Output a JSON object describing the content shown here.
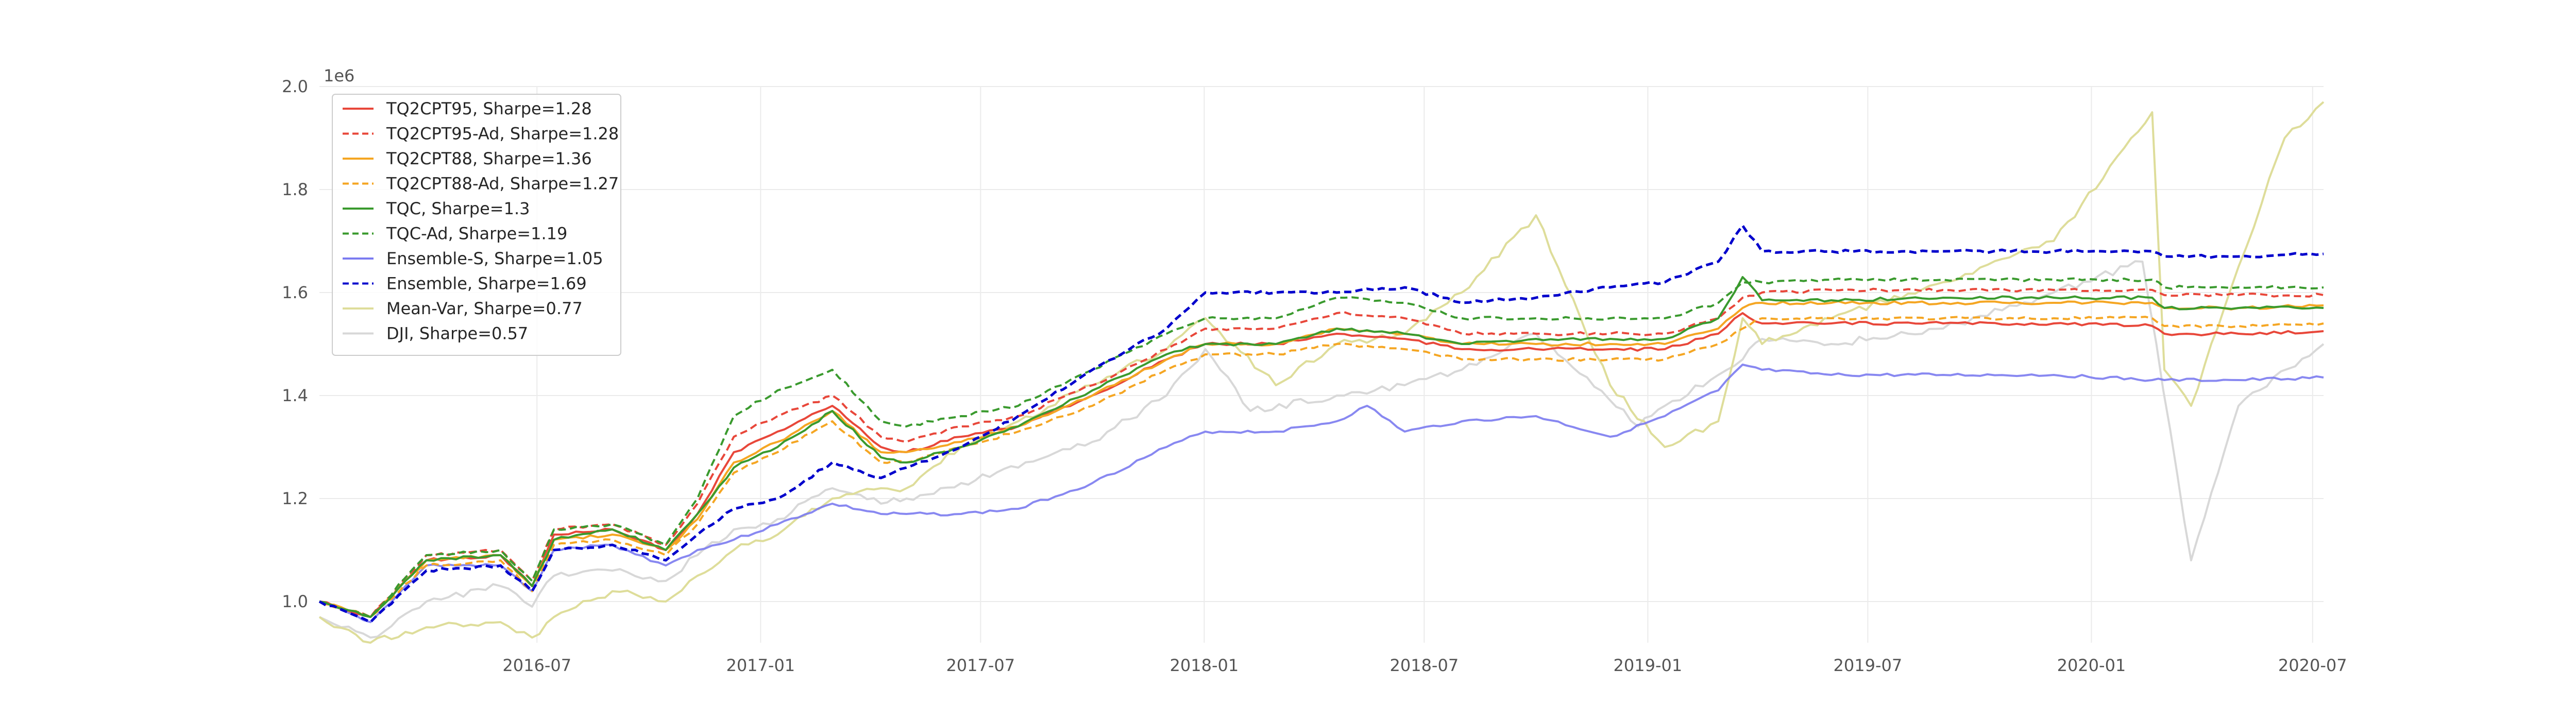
{
  "chart_data": {
    "type": "line",
    "title": "",
    "xlabel": "",
    "ylabel": "",
    "y_exponent_label": "1e6",
    "ylim": [
      0.92,
      2.0
    ],
    "xlim": [
      "2016-01-04",
      "2020-07-10"
    ],
    "x_ticks": [
      {
        "date": "2016-07-01",
        "label": "2016-07"
      },
      {
        "date": "2017-01-01",
        "label": "2017-01"
      },
      {
        "date": "2017-07-01",
        "label": "2017-07"
      },
      {
        "date": "2018-01-01",
        "label": "2018-01"
      },
      {
        "date": "2018-07-01",
        "label": "2018-07"
      },
      {
        "date": "2019-01-01",
        "label": "2019-01"
      },
      {
        "date": "2019-07-01",
        "label": "2019-07"
      },
      {
        "date": "2020-01-01",
        "label": "2020-01"
      },
      {
        "date": "2020-07-01",
        "label": "2020-07"
      }
    ],
    "y_ticks": [
      {
        "value": 1.0,
        "label": "1.0"
      },
      {
        "value": 1.2,
        "label": "1.2"
      },
      {
        "value": 1.4,
        "label": "1.4"
      },
      {
        "value": 1.6,
        "label": "1.6"
      },
      {
        "value": 1.8,
        "label": "1.8"
      },
      {
        "value": 2.0,
        "label": "2.0"
      }
    ],
    "grid": true,
    "legend_position": "top-left",
    "series": [
      {
        "name": "TQ2CPT95, Sharpe=1.28",
        "color": "#e8473a",
        "dash": "solid",
        "width": 4,
        "x": [
          "2016-01-04",
          "2016-02-15",
          "2016-04-01",
          "2016-06-01",
          "2016-06-27",
          "2016-07-15",
          "2016-09-01",
          "2016-10-15",
          "2016-11-10",
          "2016-12-10",
          "2017-01-15",
          "2017-03-01",
          "2017-04-10",
          "2017-05-01",
          "2017-06-15",
          "2017-08-01",
          "2017-10-01",
          "2017-12-01",
          "2018-01-02",
          "2018-03-01",
          "2018-04-20",
          "2018-06-15",
          "2018-08-01",
          "2018-10-01",
          "2018-12-01",
          "2019-01-15",
          "2019-02-28",
          "2019-03-20",
          "2019-04-05",
          "2019-06-01",
          "2019-09-01",
          "2019-12-01",
          "2020-02-20",
          "2020-03-01",
          "2020-05-01",
          "2020-07-10"
        ],
        "y": [
          1.0,
          0.97,
          1.08,
          1.09,
          1.03,
          1.13,
          1.14,
          1.1,
          1.17,
          1.29,
          1.33,
          1.38,
          1.3,
          1.29,
          1.32,
          1.34,
          1.4,
          1.47,
          1.5,
          1.5,
          1.52,
          1.51,
          1.49,
          1.49,
          1.49,
          1.49,
          1.52,
          1.56,
          1.54,
          1.54,
          1.54,
          1.54,
          1.535,
          1.52,
          1.52,
          1.525
        ]
      },
      {
        "name": "TQ2CPT95-Ad, Sharpe=1.28",
        "color": "#e8473a",
        "dash": "dashed",
        "width": 4,
        "x": [
          "2016-01-04",
          "2016-02-15",
          "2016-04-01",
          "2016-06-01",
          "2016-06-27",
          "2016-07-15",
          "2016-09-01",
          "2016-10-15",
          "2016-11-10",
          "2016-12-10",
          "2017-01-15",
          "2017-03-01",
          "2017-04-10",
          "2017-05-01",
          "2017-06-15",
          "2017-08-01",
          "2017-10-01",
          "2017-12-01",
          "2018-01-02",
          "2018-03-01",
          "2018-04-20",
          "2018-06-15",
          "2018-08-01",
          "2018-10-01",
          "2018-12-01",
          "2019-01-15",
          "2019-02-28",
          "2019-03-20",
          "2019-04-05",
          "2019-06-01",
          "2019-09-01",
          "2019-12-01",
          "2020-02-20",
          "2020-03-01",
          "2020-05-01",
          "2020-07-10"
        ],
        "y": [
          1.0,
          0.97,
          1.09,
          1.1,
          1.04,
          1.14,
          1.15,
          1.11,
          1.19,
          1.32,
          1.36,
          1.4,
          1.32,
          1.31,
          1.34,
          1.36,
          1.42,
          1.49,
          1.53,
          1.53,
          1.56,
          1.55,
          1.52,
          1.52,
          1.52,
          1.52,
          1.55,
          1.59,
          1.6,
          1.605,
          1.605,
          1.605,
          1.605,
          1.595,
          1.595,
          1.595
        ]
      },
      {
        "name": "TQ2CPT88, Sharpe=1.36",
        "color": "#f5a623",
        "dash": "solid",
        "width": 4,
        "x": [
          "2016-01-04",
          "2016-02-15",
          "2016-04-01",
          "2016-06-01",
          "2016-06-27",
          "2016-07-15",
          "2016-09-01",
          "2016-10-15",
          "2016-11-10",
          "2016-12-10",
          "2017-01-15",
          "2017-03-01",
          "2017-04-10",
          "2017-05-01",
          "2017-06-15",
          "2017-08-01",
          "2017-10-01",
          "2017-12-01",
          "2018-01-02",
          "2018-03-01",
          "2018-04-20",
          "2018-06-15",
          "2018-08-01",
          "2018-10-01",
          "2018-12-01",
          "2019-01-15",
          "2019-02-28",
          "2019-03-20",
          "2019-04-05",
          "2019-06-01",
          "2019-09-01",
          "2019-12-01",
          "2020-02-20",
          "2020-03-01",
          "2020-05-01",
          "2020-07-10"
        ],
        "y": [
          1.0,
          0.97,
          1.08,
          1.09,
          1.03,
          1.12,
          1.13,
          1.1,
          1.16,
          1.27,
          1.31,
          1.37,
          1.29,
          1.29,
          1.31,
          1.34,
          1.4,
          1.47,
          1.5,
          1.5,
          1.53,
          1.52,
          1.5,
          1.5,
          1.5,
          1.5,
          1.53,
          1.57,
          1.58,
          1.58,
          1.58,
          1.58,
          1.58,
          1.57,
          1.57,
          1.575
        ]
      },
      {
        "name": "TQ2CPT88-Ad, Sharpe=1.27",
        "color": "#f5a623",
        "dash": "dashed",
        "width": 4,
        "x": [
          "2016-01-04",
          "2016-02-15",
          "2016-04-01",
          "2016-06-01",
          "2016-06-27",
          "2016-07-15",
          "2016-09-01",
          "2016-10-15",
          "2016-11-10",
          "2016-12-10",
          "2017-01-15",
          "2017-03-01",
          "2017-04-10",
          "2017-05-01",
          "2017-06-15",
          "2017-08-01",
          "2017-10-01",
          "2017-12-01",
          "2018-01-02",
          "2018-03-01",
          "2018-04-20",
          "2018-06-15",
          "2018-08-01",
          "2018-10-01",
          "2018-12-01",
          "2019-01-15",
          "2019-02-28",
          "2019-03-20",
          "2019-04-05",
          "2019-06-01",
          "2019-09-01",
          "2019-12-01",
          "2020-02-20",
          "2020-03-01",
          "2020-05-01",
          "2020-07-10"
        ],
        "y": [
          1.0,
          0.97,
          1.07,
          1.08,
          1.02,
          1.11,
          1.12,
          1.09,
          1.15,
          1.25,
          1.29,
          1.35,
          1.27,
          1.27,
          1.3,
          1.33,
          1.38,
          1.45,
          1.48,
          1.48,
          1.5,
          1.49,
          1.47,
          1.47,
          1.47,
          1.47,
          1.5,
          1.53,
          1.55,
          1.55,
          1.55,
          1.55,
          1.55,
          1.535,
          1.535,
          1.54
        ]
      },
      {
        "name": "TQC, Sharpe=1.3",
        "color": "#3a9a2e",
        "dash": "solid",
        "width": 4,
        "x": [
          "2016-01-04",
          "2016-02-15",
          "2016-04-01",
          "2016-06-01",
          "2016-06-27",
          "2016-07-15",
          "2016-09-01",
          "2016-10-15",
          "2016-11-10",
          "2016-12-10",
          "2017-01-15",
          "2017-03-01",
          "2017-04-10",
          "2017-05-01",
          "2017-06-15",
          "2017-08-01",
          "2017-10-01",
          "2017-12-01",
          "2018-01-02",
          "2018-03-01",
          "2018-04-20",
          "2018-06-15",
          "2018-08-01",
          "2018-10-01",
          "2018-12-01",
          "2019-01-15",
          "2019-02-28",
          "2019-03-20",
          "2019-04-05",
          "2019-06-01",
          "2019-09-01",
          "2019-12-01",
          "2020-02-20",
          "2020-03-01",
          "2020-05-01",
          "2020-07-10"
        ],
        "y": [
          1.0,
          0.97,
          1.08,
          1.09,
          1.03,
          1.12,
          1.14,
          1.1,
          1.17,
          1.26,
          1.3,
          1.37,
          1.28,
          1.27,
          1.3,
          1.34,
          1.41,
          1.48,
          1.5,
          1.5,
          1.53,
          1.52,
          1.5,
          1.51,
          1.51,
          1.51,
          1.55,
          1.63,
          1.585,
          1.585,
          1.59,
          1.59,
          1.59,
          1.57,
          1.57,
          1.57
        ]
      },
      {
        "name": "TQC-Ad, Sharpe=1.19",
        "color": "#3a9a2e",
        "dash": "dashed",
        "width": 4,
        "x": [
          "2016-01-04",
          "2016-02-15",
          "2016-04-01",
          "2016-06-01",
          "2016-06-27",
          "2016-07-15",
          "2016-09-01",
          "2016-10-15",
          "2016-11-10",
          "2016-12-10",
          "2017-01-15",
          "2017-03-01",
          "2017-04-10",
          "2017-05-01",
          "2017-06-15",
          "2017-08-01",
          "2017-10-01",
          "2017-12-01",
          "2018-01-02",
          "2018-03-01",
          "2018-04-20",
          "2018-06-15",
          "2018-08-01",
          "2018-10-01",
          "2018-12-01",
          "2019-01-15",
          "2019-02-28",
          "2019-03-20",
          "2019-04-05",
          "2019-06-01",
          "2019-09-01",
          "2019-12-01",
          "2020-02-20",
          "2020-03-01",
          "2020-05-01",
          "2020-07-10"
        ],
        "y": [
          1.0,
          0.97,
          1.09,
          1.1,
          1.04,
          1.14,
          1.15,
          1.11,
          1.2,
          1.36,
          1.41,
          1.45,
          1.35,
          1.34,
          1.36,
          1.38,
          1.45,
          1.52,
          1.55,
          1.55,
          1.59,
          1.58,
          1.55,
          1.55,
          1.55,
          1.55,
          1.58,
          1.62,
          1.62,
          1.625,
          1.625,
          1.625,
          1.625,
          1.61,
          1.61,
          1.61
        ]
      },
      {
        "name": "Ensemble-S, Sharpe=1.05",
        "color": "#7b7bf0",
        "dash": "solid",
        "width": 4,
        "x": [
          "2016-01-04",
          "2016-02-15",
          "2016-04-01",
          "2016-06-01",
          "2016-06-27",
          "2016-07-15",
          "2016-09-01",
          "2016-10-15",
          "2016-11-10",
          "2016-12-10",
          "2017-01-15",
          "2017-03-01",
          "2017-04-10",
          "2017-05-01",
          "2017-06-15",
          "2017-08-01",
          "2017-10-01",
          "2017-12-01",
          "2018-01-02",
          "2018-03-01",
          "2018-04-20",
          "2018-05-15",
          "2018-06-15",
          "2018-08-01",
          "2018-10-01",
          "2018-12-01",
          "2019-01-15",
          "2019-02-28",
          "2019-03-20",
          "2019-04-05",
          "2019-06-01",
          "2019-09-01",
          "2019-12-01",
          "2020-02-20",
          "2020-03-01",
          "2020-05-01",
          "2020-07-10"
        ],
        "y": [
          1.0,
          0.96,
          1.07,
          1.07,
          1.02,
          1.1,
          1.11,
          1.07,
          1.1,
          1.12,
          1.15,
          1.19,
          1.17,
          1.17,
          1.17,
          1.18,
          1.23,
          1.3,
          1.33,
          1.33,
          1.35,
          1.38,
          1.33,
          1.35,
          1.36,
          1.32,
          1.36,
          1.41,
          1.46,
          1.45,
          1.44,
          1.44,
          1.44,
          1.43,
          1.43,
          1.43,
          1.435
        ]
      },
      {
        "name": "Ensemble, Sharpe=1.69",
        "color": "#0000cc",
        "dash": "dashed",
        "width": 5,
        "x": [
          "2016-01-04",
          "2016-02-15",
          "2016-04-01",
          "2016-06-01",
          "2016-06-27",
          "2016-07-15",
          "2016-09-01",
          "2016-10-15",
          "2016-11-10",
          "2016-12-10",
          "2017-01-15",
          "2017-03-01",
          "2017-04-10",
          "2017-05-01",
          "2017-06-15",
          "2017-08-01",
          "2017-10-01",
          "2017-12-01",
          "2018-01-02",
          "2018-03-01",
          "2018-04-20",
          "2018-06-15",
          "2018-08-01",
          "2018-10-01",
          "2018-12-01",
          "2019-01-15",
          "2019-02-28",
          "2019-03-20",
          "2019-04-05",
          "2019-06-01",
          "2019-09-01",
          "2019-12-01",
          "2020-02-20",
          "2020-03-01",
          "2020-05-01",
          "2020-07-10"
        ],
        "y": [
          1.0,
          0.96,
          1.06,
          1.07,
          1.02,
          1.1,
          1.11,
          1.08,
          1.13,
          1.18,
          1.2,
          1.27,
          1.24,
          1.26,
          1.3,
          1.36,
          1.45,
          1.53,
          1.6,
          1.6,
          1.6,
          1.61,
          1.58,
          1.59,
          1.61,
          1.62,
          1.66,
          1.73,
          1.68,
          1.68,
          1.68,
          1.68,
          1.68,
          1.67,
          1.67,
          1.675
        ]
      },
      {
        "name": "Mean-Var, Sharpe=0.77",
        "color": "#dedd9a",
        "dash": "solid",
        "width": 4,
        "x": [
          "2016-01-04",
          "2016-02-15",
          "2016-04-01",
          "2016-06-01",
          "2016-06-27",
          "2016-07-15",
          "2016-09-01",
          "2016-10-15",
          "2016-11-10",
          "2016-12-10",
          "2017-01-15",
          "2017-03-01",
          "2017-04-10",
          "2017-05-01",
          "2017-06-15",
          "2017-08-01",
          "2017-10-01",
          "2017-12-01",
          "2018-01-02",
          "2018-03-01",
          "2018-04-20",
          "2018-06-15",
          "2018-08-01",
          "2018-10-01",
          "2018-12-01",
          "2019-01-15",
          "2019-02-28",
          "2019-03-20",
          "2019-04-05",
          "2019-06-01",
          "2019-09-01",
          "2019-12-01",
          "2020-02-20",
          "2020-03-01",
          "2020-03-23",
          "2020-05-01",
          "2020-06-08",
          "2020-07-10"
        ],
        "y": [
          0.97,
          0.92,
          0.95,
          0.96,
          0.93,
          0.97,
          1.02,
          1.0,
          1.05,
          1.1,
          1.13,
          1.2,
          1.22,
          1.22,
          1.3,
          1.35,
          1.42,
          1.49,
          1.55,
          1.42,
          1.5,
          1.52,
          1.6,
          1.75,
          1.42,
          1.3,
          1.35,
          1.55,
          1.5,
          1.55,
          1.62,
          1.7,
          1.95,
          1.45,
          1.38,
          1.65,
          1.9,
          1.97
        ]
      },
      {
        "name": "DJI, Sharpe=0.57",
        "color": "#d8d8d8",
        "dash": "solid",
        "width": 4,
        "x": [
          "2016-01-04",
          "2016-02-15",
          "2016-04-01",
          "2016-06-01",
          "2016-06-27",
          "2016-07-15",
          "2016-09-01",
          "2016-10-15",
          "2016-11-10",
          "2016-12-10",
          "2017-01-15",
          "2017-03-01",
          "2017-04-10",
          "2017-05-01",
          "2017-06-15",
          "2017-08-01",
          "2017-10-01",
          "2017-12-01",
          "2018-01-02",
          "2018-02-08",
          "2018-04-20",
          "2018-06-15",
          "2018-08-01",
          "2018-10-01",
          "2018-12-24",
          "2019-01-15",
          "2019-02-28",
          "2019-03-20",
          "2019-04-05",
          "2019-06-01",
          "2019-09-01",
          "2019-12-01",
          "2020-02-12",
          "2020-03-23",
          "2020-05-01",
          "2020-07-10"
        ],
        "y": [
          0.97,
          0.93,
          1.0,
          1.03,
          0.99,
          1.05,
          1.06,
          1.04,
          1.09,
          1.14,
          1.16,
          1.22,
          1.19,
          1.2,
          1.23,
          1.26,
          1.31,
          1.4,
          1.49,
          1.37,
          1.4,
          1.42,
          1.45,
          1.52,
          1.34,
          1.38,
          1.44,
          1.47,
          1.51,
          1.5,
          1.53,
          1.6,
          1.66,
          1.08,
          1.38,
          1.5
        ]
      }
    ]
  }
}
